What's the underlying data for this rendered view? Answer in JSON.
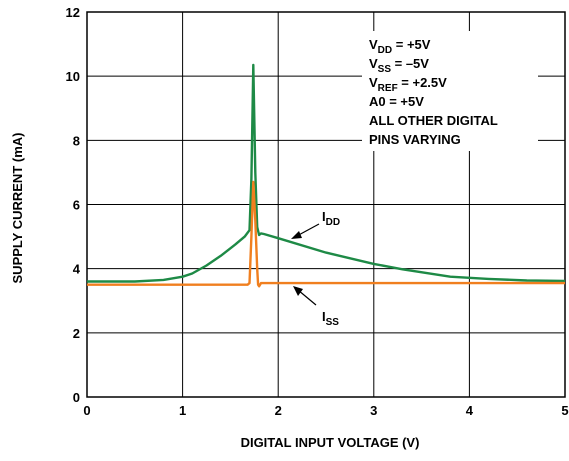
{
  "chart_data": {
    "type": "line",
    "xlabel": "DIGITAL INPUT VOLTAGE (V)",
    "ylabel": "SUPPLY CURRENT (mA)",
    "xlim": [
      0,
      5
    ],
    "ylim": [
      0,
      12
    ],
    "x_ticks": [
      "0",
      "1",
      "2",
      "3",
      "4",
      "5"
    ],
    "y_ticks": [
      "0",
      "2",
      "4",
      "6",
      "8",
      "10",
      "12"
    ],
    "grid": true,
    "series": [
      {
        "name": "IDD",
        "label_main": "I",
        "label_sub": "DD",
        "color": "#1e8a46",
        "x": [
          0,
          0.5,
          0.8,
          1.0,
          1.1,
          1.25,
          1.4,
          1.55,
          1.65,
          1.7,
          1.72,
          1.74,
          1.76,
          1.78,
          1.8,
          1.82,
          1.85,
          2.0,
          2.5,
          3.0,
          3.3,
          3.8,
          4.2,
          4.6,
          5.0
        ],
        "y": [
          3.6,
          3.6,
          3.65,
          3.75,
          3.85,
          4.1,
          4.4,
          4.75,
          5.0,
          5.2,
          6.8,
          10.35,
          7.0,
          5.3,
          5.05,
          5.1,
          5.08,
          4.95,
          4.5,
          4.15,
          3.98,
          3.75,
          3.68,
          3.63,
          3.62
        ]
      },
      {
        "name": "ISS",
        "label_main": "I",
        "label_sub": "SS",
        "color": "#f07f1f",
        "x": [
          0,
          1.0,
          1.5,
          1.68,
          1.7,
          1.72,
          1.74,
          1.76,
          1.78,
          1.79,
          1.8,
          1.82,
          1.85,
          2.5,
          3.0,
          4.0,
          5.0
        ],
        "y": [
          3.5,
          3.5,
          3.5,
          3.5,
          3.55,
          5.0,
          6.7,
          5.5,
          4.0,
          3.5,
          3.45,
          3.55,
          3.55,
          3.55,
          3.55,
          3.55,
          3.55
        ]
      }
    ],
    "annotations": [
      {
        "main": "V",
        "sub": "DD",
        "rest": " = +5V"
      },
      {
        "main": "V",
        "sub": "SS",
        "rest": " = –5V"
      },
      {
        "main": "V",
        "sub": "REF",
        "rest": " = +2.5V"
      },
      {
        "main": "A0 = +5V",
        "sub": "",
        "rest": ""
      },
      {
        "main": "ALL OTHER DIGITAL",
        "sub": "",
        "rest": ""
      },
      {
        "main": "PINS VARYING",
        "sub": "",
        "rest": ""
      }
    ]
  }
}
